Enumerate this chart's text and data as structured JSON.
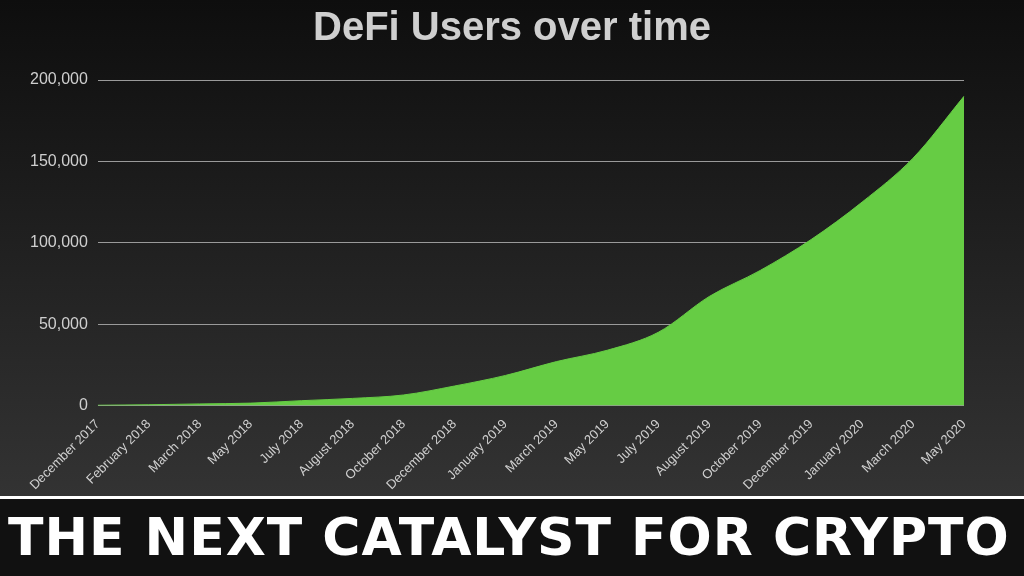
{
  "chart_data": {
    "type": "area",
    "title": "DeFi Users over time",
    "categories": [
      "December 2017",
      "February 2018",
      "March 2018",
      "May 2018",
      "July 2018",
      "August 2018",
      "October 2018",
      "December 2018",
      "January 2019",
      "March 2019",
      "May 2019",
      "July 2019",
      "August 2019",
      "October 2019",
      "December 2019",
      "January 2020",
      "March 2020",
      "May 2020"
    ],
    "series": [
      {
        "color": "#66cc44",
        "values": [
          200,
          500,
          1000,
          1500,
          3000,
          4400,
          6500,
          12000,
          18500,
          27000,
          34000,
          45000,
          67000,
          83000,
          102000,
          125000,
          152000,
          190000
        ]
      }
    ],
    "ylim": [
      0,
      200000
    ],
    "yticks": [
      {
        "value": 0,
        "label": "0"
      },
      {
        "value": 50000,
        "label": "50,000"
      },
      {
        "value": 100000,
        "label": "100,000"
      },
      {
        "value": 150000,
        "label": "150,000"
      },
      {
        "value": 200000,
        "label": "200,000"
      }
    ],
    "grid": "y",
    "legend": false,
    "annotations": [
      "THE NEXT CATALYST FOR CRYPTO"
    ]
  }
}
